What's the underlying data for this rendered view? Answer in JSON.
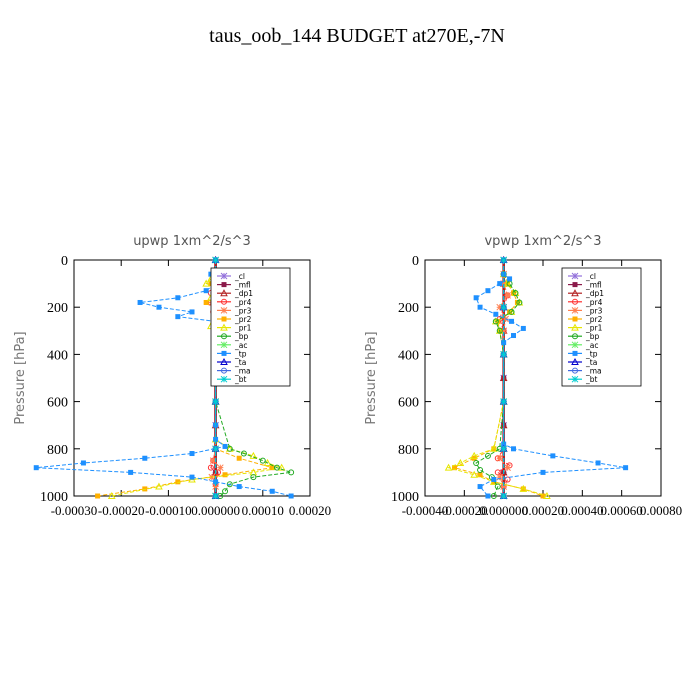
{
  "figure_title": "taus_oob_144  BUDGET at270E,-7N",
  "chart_data": [
    {
      "type": "line",
      "title": "upwp   1xm^2/s^3",
      "ylabel": "Pressure [hPa]",
      "xlabel": "",
      "xlim": [
        -0.0003,
        0.0002
      ],
      "xticks": [
        -0.0003,
        -0.0002,
        -0.0001,
        0.0,
        0.0001,
        0.0002
      ],
      "xtick_labels": [
        "-0.00030",
        "-0.00020",
        "-0.00010",
        "0.000000",
        "0.00010",
        "0.00020"
      ],
      "ylim": [
        1000,
        0
      ],
      "yticks": [
        0,
        200,
        400,
        600,
        800,
        1000
      ],
      "ytick_labels": [
        "0",
        "200",
        "400",
        "600",
        "800",
        "1000"
      ],
      "legend_position": "top-right",
      "grid": false,
      "series": [
        {
          "name": "_cl",
          "color": "#9370db",
          "y": [
            0,
            100,
            200,
            300,
            400,
            500,
            600,
            700,
            800,
            900,
            1000
          ],
          "x": [
            0,
            0,
            0,
            0,
            0,
            0,
            0,
            0,
            0,
            0,
            0
          ]
        },
        {
          "name": "_mfl",
          "color": "#8b1a4a",
          "y": [
            0,
            100,
            200,
            300,
            400,
            500,
            600,
            700,
            800,
            900,
            1000
          ],
          "x": [
            0,
            0,
            0,
            0,
            0,
            0,
            0,
            0,
            0,
            0,
            0
          ]
        },
        {
          "name": "_dp1",
          "color": "#b22222",
          "y": [
            0,
            100,
            200,
            300,
            400,
            500,
            600,
            700,
            800,
            900,
            1000
          ],
          "x": [
            0,
            0,
            0,
            0,
            0,
            0,
            0,
            0,
            0,
            0,
            0
          ]
        },
        {
          "name": "_pr4",
          "color": "#ff3030",
          "y": [
            60,
            100,
            140,
            160,
            180,
            200,
            220,
            260,
            300,
            400,
            600,
            800,
            850,
            880,
            900,
            950,
            1000
          ],
          "x": [
            0,
            5e-06,
            -1e-05,
            1e-05,
            -1e-05,
            1e-05,
            -5e-06,
            0,
            0,
            0,
            0,
            0,
            -5e-06,
            -1e-05,
            5e-06,
            0,
            0
          ]
        },
        {
          "name": "_pr3",
          "color": "#ff7f50",
          "y": [
            60,
            100,
            140,
            180,
            220,
            260,
            300,
            400,
            600,
            800,
            850,
            880,
            920,
            960,
            1000
          ],
          "x": [
            0,
            5e-06,
            1e-05,
            -8e-06,
            1e-05,
            0,
            0,
            0,
            0,
            0,
            -5e-06,
            1e-05,
            -8e-06,
            0,
            0
          ]
        },
        {
          "name": "_pr2",
          "color": "#ffb000",
          "y": [
            60,
            100,
            140,
            180,
            220,
            260,
            300,
            400,
            600,
            800,
            840,
            880,
            910,
            940,
            970,
            1000
          ],
          "x": [
            0,
            -1e-05,
            2e-05,
            -2e-05,
            1e-05,
            -5e-06,
            0,
            0,
            0,
            0,
            5e-05,
            0.00012,
            2e-05,
            -8e-05,
            -0.00015,
            -0.00025
          ]
        },
        {
          "name": "_pr1",
          "color": "#e6e600",
          "y": [
            60,
            80,
            100,
            130,
            160,
            200,
            240,
            280,
            320,
            400,
            600,
            760,
            800,
            830,
            860,
            880,
            900,
            930,
            960,
            1000
          ],
          "x": [
            0,
            -1e-05,
            -2e-05,
            2e-05,
            -1e-05,
            1e-05,
            0,
            -1e-05,
            0,
            0,
            0,
            0,
            3e-05,
            8e-05,
            0.00011,
            0.00014,
            8e-05,
            -5e-05,
            -0.00012,
            -0.00022
          ]
        },
        {
          "name": "_bp",
          "color": "#22aa22",
          "y": [
            60,
            100,
            140,
            180,
            200,
            220,
            260,
            300,
            400,
            600,
            800,
            820,
            850,
            880,
            900,
            920,
            950,
            980,
            1000
          ],
          "x": [
            0,
            1e-05,
            2e-05,
            3e-05,
            2e-05,
            1e-05,
            0,
            0,
            0,
            0,
            3e-05,
            6e-05,
            0.0001,
            0.00013,
            0.00016,
            8e-05,
            3e-05,
            2e-05,
            1e-05
          ]
        },
        {
          "name": "_ac",
          "color": "#66ee66",
          "y": [
            0,
            200,
            400,
            600,
            800,
            1000
          ],
          "x": [
            0,
            0,
            0,
            0,
            0,
            0
          ]
        },
        {
          "name": "_tp",
          "color": "#1e90ff",
          "y": [
            60,
            100,
            130,
            160,
            180,
            200,
            220,
            240,
            260,
            280,
            300,
            340,
            400,
            500,
            600,
            700,
            760,
            790,
            820,
            840,
            860,
            880,
            900,
            920,
            940,
            960,
            980,
            1000
          ],
          "x": [
            -1e-05,
            0,
            -2e-05,
            -8e-05,
            -0.00016,
            -0.00012,
            -5e-05,
            -8e-05,
            0,
            3e-05,
            5e-06,
            0,
            0,
            0,
            0,
            0,
            0,
            2e-05,
            -5e-05,
            -0.00015,
            -0.00028,
            -0.00038,
            -0.00018,
            -5e-05,
            0,
            5e-05,
            0.00012,
            0.00016
          ]
        },
        {
          "name": "_ta",
          "color": "#0000cd",
          "y": [
            0,
            200,
            400,
            600,
            800,
            1000
          ],
          "x": [
            0,
            0,
            0,
            0,
            0,
            0
          ]
        },
        {
          "name": "_ma",
          "color": "#4169e1",
          "y": [
            0,
            200,
            400,
            600,
            800,
            1000
          ],
          "x": [
            0,
            0,
            0,
            0,
            0,
            0
          ]
        },
        {
          "name": "_bt",
          "color": "#00ced1",
          "y": [
            0,
            200,
            400,
            600,
            800,
            1000
          ],
          "x": [
            0,
            0,
            0,
            0,
            0,
            0
          ]
        }
      ]
    },
    {
      "type": "line",
      "title": "vpwp   1xm^2/s^3",
      "ylabel": "Pressure [hPa]",
      "xlabel": "",
      "xlim": [
        -0.0004,
        0.0008
      ],
      "xticks": [
        -0.0004,
        -0.0002,
        0.0,
        0.0002,
        0.0004,
        0.0006,
        0.0008
      ],
      "xtick_labels": [
        "-0.00040",
        "-0.00020",
        "0.000000",
        "0.00020",
        "0.00040",
        "0.00060",
        "0.00080"
      ],
      "ylim": [
        1000,
        0
      ],
      "yticks": [
        0,
        200,
        400,
        600,
        800,
        1000
      ],
      "ytick_labels": [
        "0",
        "200",
        "400",
        "600",
        "800",
        "1000"
      ],
      "legend_position": "top-right",
      "grid": false,
      "series": [
        {
          "name": "_cl",
          "color": "#9370db",
          "y": [
            0,
            100,
            200,
            300,
            400,
            500,
            600,
            700,
            800,
            900,
            1000
          ],
          "x": [
            0,
            0,
            0,
            0,
            0,
            0,
            0,
            0,
            0,
            0,
            0
          ]
        },
        {
          "name": "_mfl",
          "color": "#8b1a4a",
          "y": [
            0,
            100,
            200,
            300,
            400,
            500,
            600,
            700,
            800,
            900,
            1000
          ],
          "x": [
            0,
            0,
            0,
            0,
            0,
            0,
            0,
            0,
            0,
            0,
            0
          ]
        },
        {
          "name": "_dp1",
          "color": "#b22222",
          "y": [
            0,
            100,
            200,
            300,
            400,
            500,
            600,
            700,
            800,
            900,
            1000
          ],
          "x": [
            0,
            0,
            0,
            0,
            0,
            0,
            0,
            0,
            0,
            0,
            0
          ]
        },
        {
          "name": "_pr4",
          "color": "#ff3030",
          "y": [
            60,
            100,
            150,
            200,
            250,
            300,
            400,
            600,
            800,
            840,
            870,
            900,
            930,
            960,
            1000
          ],
          "x": [
            0,
            0,
            2e-05,
            0,
            -2e-05,
            0,
            0,
            0,
            0,
            -3e-05,
            3e-05,
            -3e-05,
            2e-05,
            0,
            0
          ]
        },
        {
          "name": "_pr3",
          "color": "#ff7f50",
          "y": [
            60,
            100,
            150,
            200,
            250,
            300,
            400,
            600,
            800,
            840,
            880,
            920,
            960,
            1000
          ],
          "x": [
            0,
            0,
            2e-05,
            -2e-05,
            1e-05,
            0,
            0,
            0,
            0,
            -2e-05,
            2e-05,
            -2e-05,
            0,
            0
          ]
        },
        {
          "name": "_pr2",
          "color": "#ffb000",
          "y": [
            60,
            100,
            140,
            180,
            220,
            260,
            300,
            400,
            600,
            800,
            840,
            880,
            910,
            940,
            970,
            1000
          ],
          "x": [
            0,
            2e-05,
            5e-05,
            7e-05,
            3e-05,
            -3e-05,
            -2e-05,
            0,
            0,
            -5e-05,
            -0.00015,
            -0.00025,
            -0.00012,
            -5e-05,
            0.0001,
            0.0002
          ]
        },
        {
          "name": "_pr1",
          "color": "#e6e600",
          "y": [
            60,
            100,
            140,
            180,
            220,
            260,
            300,
            400,
            600,
            800,
            830,
            860,
            880,
            910,
            940,
            970,
            1000
          ],
          "x": [
            0,
            2e-05,
            6e-05,
            8e-05,
            4e-05,
            -4e-05,
            -2e-05,
            0,
            0,
            -5e-05,
            -0.00015,
            -0.00022,
            -0.00028,
            -0.00015,
            -5e-05,
            0.0001,
            0.00022
          ]
        },
        {
          "name": "_bp",
          "color": "#22aa22",
          "y": [
            60,
            100,
            140,
            180,
            220,
            260,
            300,
            400,
            600,
            800,
            830,
            860,
            890,
            920,
            960,
            1000
          ],
          "x": [
            0,
            3e-05,
            6e-05,
            8e-05,
            4e-05,
            -4e-05,
            -2e-05,
            0,
            0,
            -2e-05,
            -8e-05,
            -0.00014,
            -0.00012,
            -6e-05,
            -3e-05,
            -5e-05
          ]
        },
        {
          "name": "_ac",
          "color": "#66ee66",
          "y": [
            0,
            200,
            400,
            600,
            800,
            1000
          ],
          "x": [
            0,
            0,
            0,
            0,
            0,
            0
          ]
        },
        {
          "name": "_tp",
          "color": "#1e90ff",
          "y": [
            60,
            80,
            100,
            130,
            160,
            200,
            230,
            260,
            290,
            320,
            350,
            400,
            600,
            780,
            800,
            830,
            860,
            880,
            900,
            930,
            960,
            1000
          ],
          "x": [
            0,
            3e-05,
            -2e-05,
            -8e-05,
            -0.00014,
            -0.00012,
            -4e-05,
            4e-05,
            0.0001,
            5e-05,
            0,
            0,
            0,
            0,
            5e-05,
            0.00025,
            0.00048,
            0.00062,
            0.0002,
            -5e-05,
            -0.00012,
            -8e-05
          ]
        },
        {
          "name": "_ta",
          "color": "#0000cd",
          "y": [
            0,
            200,
            400,
            600,
            800,
            1000
          ],
          "x": [
            0,
            0,
            0,
            0,
            0,
            0
          ]
        },
        {
          "name": "_ma",
          "color": "#4169e1",
          "y": [
            0,
            200,
            400,
            600,
            800,
            1000
          ],
          "x": [
            0,
            0,
            0,
            0,
            0,
            0
          ]
        },
        {
          "name": "_bt",
          "color": "#00ced1",
          "y": [
            0,
            200,
            400,
            600,
            800,
            1000
          ],
          "x": [
            0,
            0,
            0,
            0,
            0,
            0
          ]
        }
      ]
    }
  ]
}
